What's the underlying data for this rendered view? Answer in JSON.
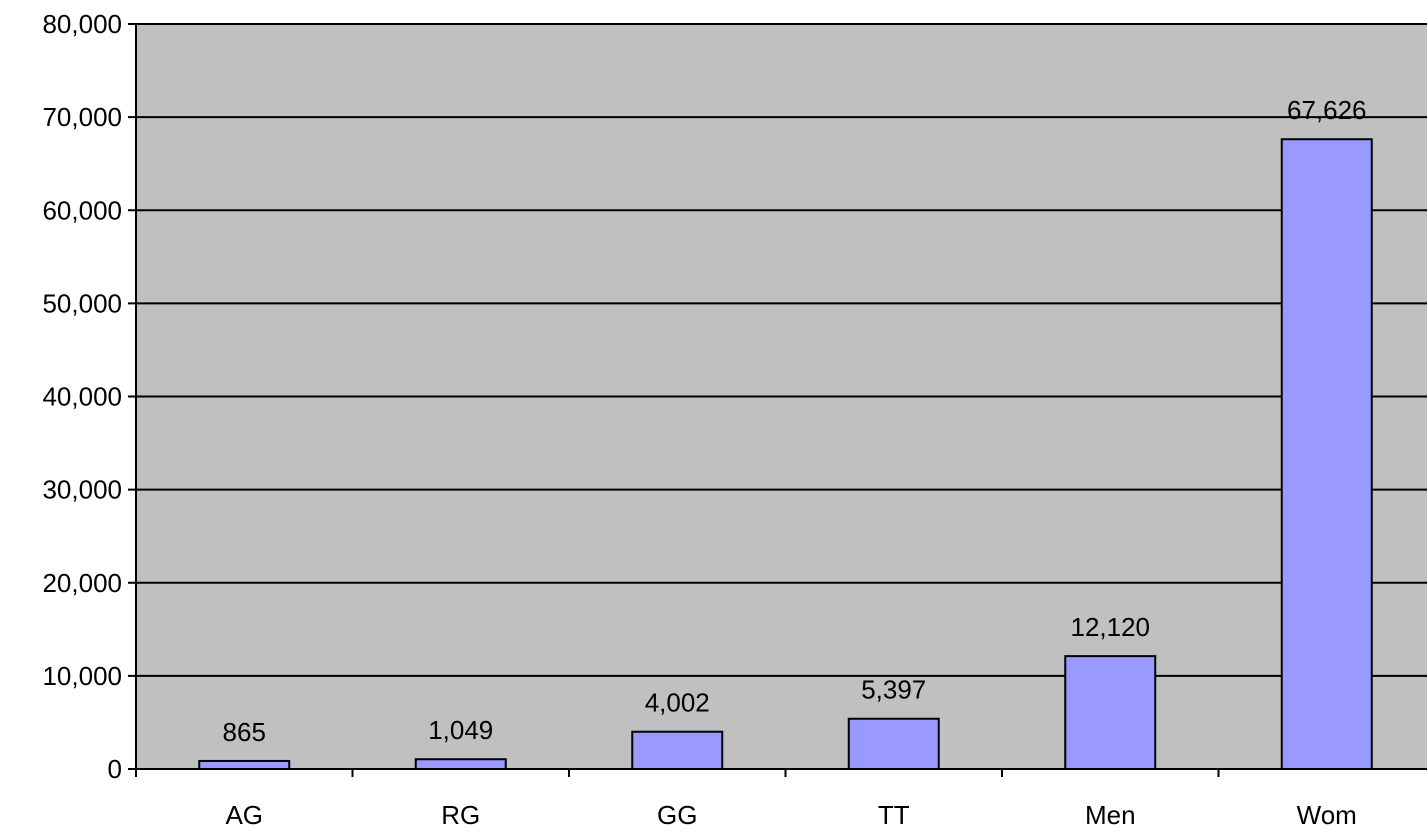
{
  "chart_data": {
    "type": "bar",
    "categories": [
      "AG",
      "RG",
      "GG",
      "TT",
      "Men",
      "Wom"
    ],
    "values": [
      865,
      1049,
      4002,
      5397,
      12120,
      67626
    ],
    "data_labels": [
      "865",
      "1,049",
      "4,002",
      "5,397",
      "12,120",
      "67,626"
    ],
    "title": "",
    "xlabel": "",
    "ylabel": "",
    "ylim": [
      0,
      80000
    ],
    "y_ticks": [
      0,
      10000,
      20000,
      30000,
      40000,
      50000,
      60000,
      70000,
      80000
    ],
    "y_tick_labels": [
      "0",
      "10,000",
      "20,000",
      "30,000",
      "40,000",
      "50,000",
      "60,000",
      "70,000",
      "80,000"
    ],
    "grid": true,
    "legend": "none",
    "colors": {
      "bar_fill": "#9999ff",
      "bar_stroke": "#000000",
      "plot_background": "#c0c0c0",
      "gridline": "#000000"
    }
  }
}
